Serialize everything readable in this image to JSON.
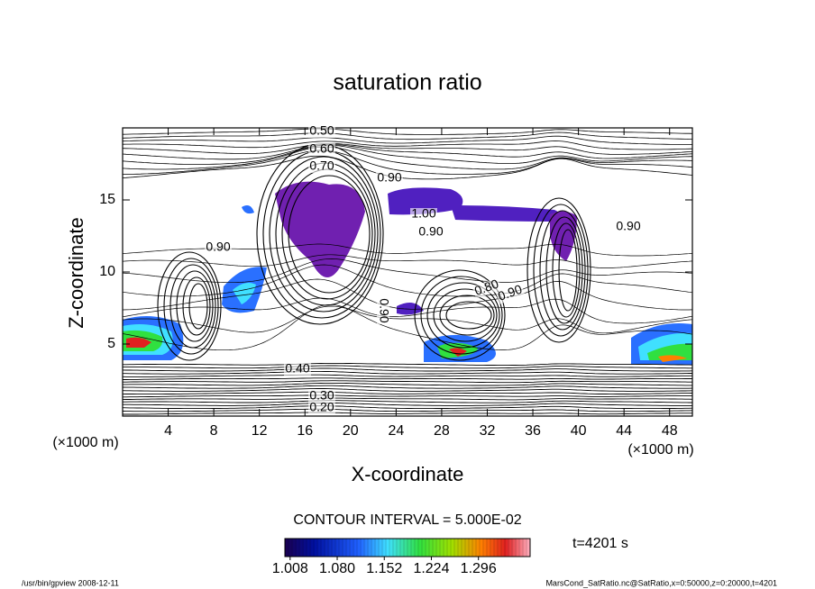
{
  "chart_data": {
    "type": "contour",
    "title": "saturation ratio",
    "xlabel": "X-coordinate",
    "ylabel": "Z-coordinate",
    "x_unit": "(×1000 m)",
    "y_unit": "(×1000 m)",
    "xlim": [
      0,
      50
    ],
    "ylim": [
      0,
      20
    ],
    "xticks": [
      4,
      8,
      12,
      16,
      20,
      24,
      28,
      32,
      36,
      40,
      44,
      48
    ],
    "yticks": [
      5,
      10,
      15
    ],
    "contour_labels": [
      "0.50",
      "0.60",
      "0.70",
      "0.90",
      "1.00",
      "0.90",
      "0.90",
      "0.90",
      "0.80",
      "0.90",
      "0.90",
      "0.40",
      "0.30",
      "0.20"
    ],
    "contour_interval": "CONTOUR INTERVAL = 5.000E-02",
    "colorbar": {
      "clim": [
        1.0,
        1.375
      ],
      "ticks": [
        1.008,
        {
          "value": 1.08,
          "label": "1.080"
        },
        1.152,
        1.224,
        1.296
      ]
    },
    "time_label": "t=4201 s",
    "footer_left": "/usr/bin/gpview   2008-12-11",
    "footer_right": "MarsCond_SatRatio.nc@SatRatio,x=0:50000,z=0:20000,t=4201"
  }
}
